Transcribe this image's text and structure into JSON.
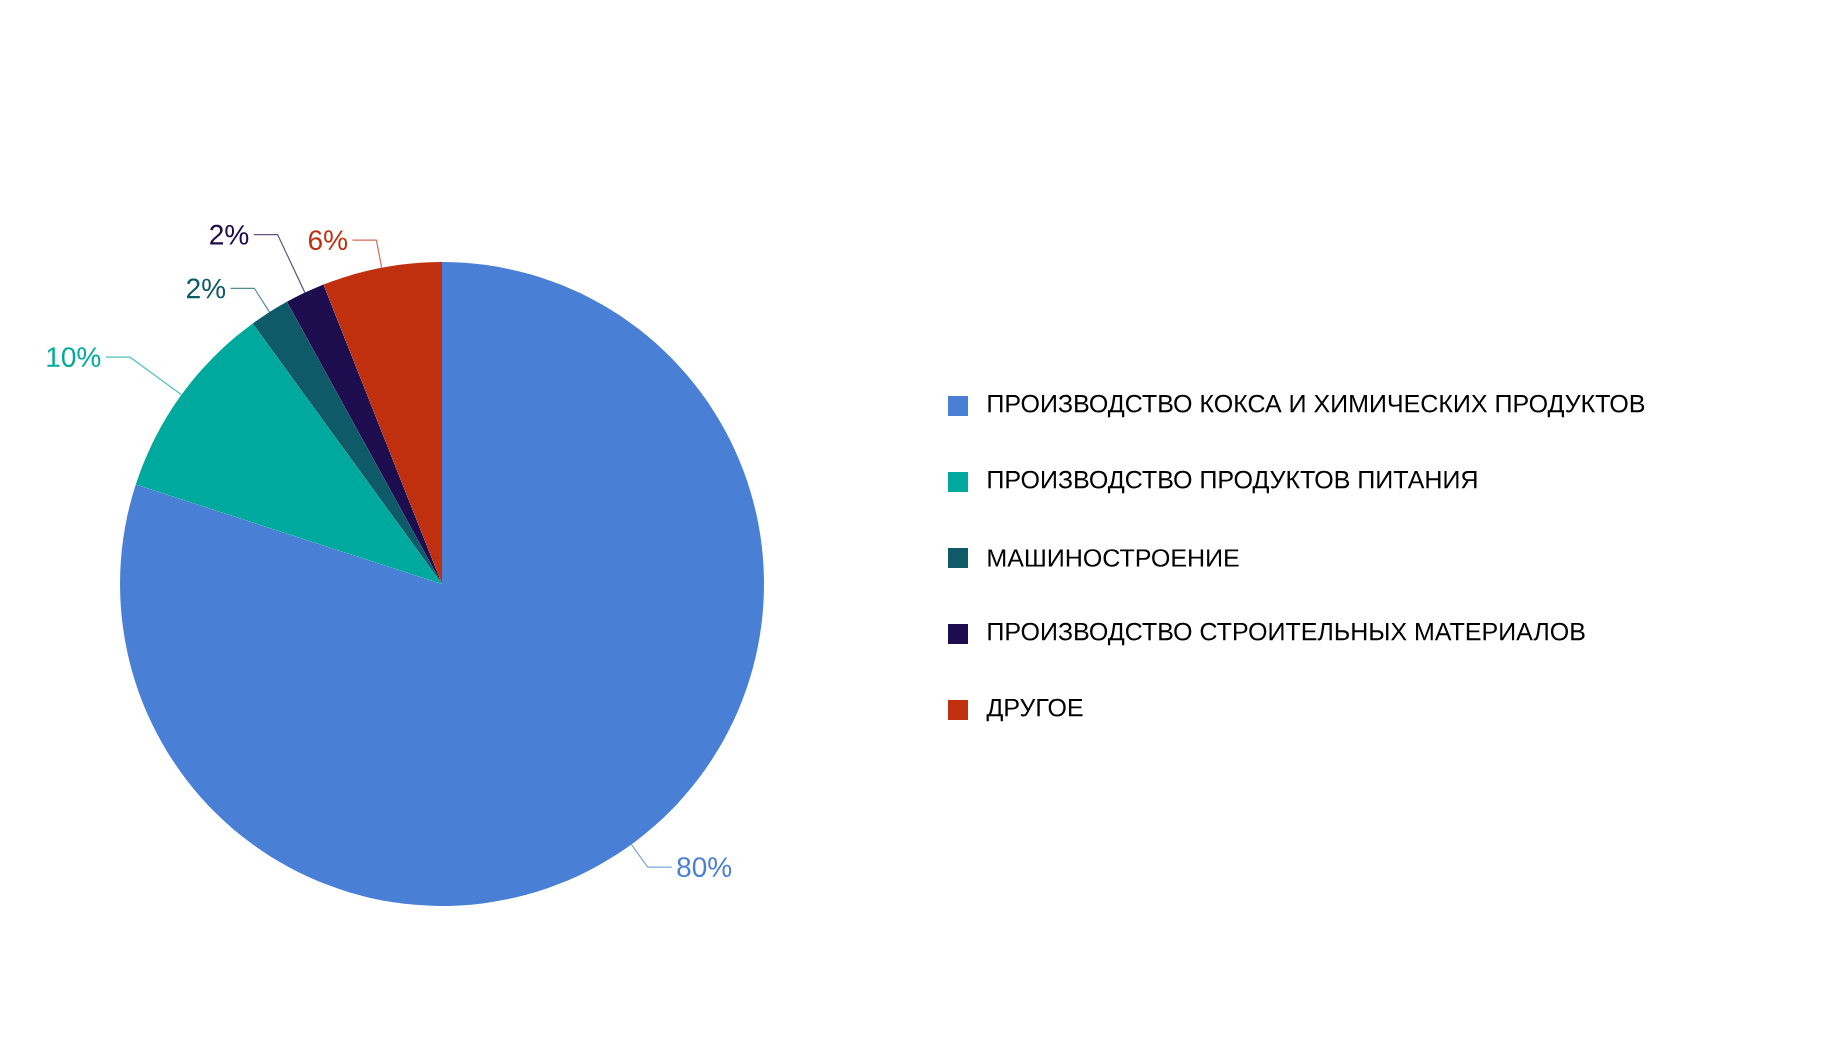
{
  "chart_data": {
    "type": "pie",
    "categories": [
      "ПРОИЗВОДСТВО КОКСА И ХИМИЧЕСКИХ ПРОДУКТОВ",
      "ПРОИЗВОДСТВО ПРОДУКТОВ ПИТАНИЯ",
      "МАШИНОСТРОЕНИЕ",
      "ПРОИЗВОДСТВО СТРОИТЕЛЬНЫХ МАТЕРИАЛОВ",
      "ДРУГОЕ"
    ],
    "values": [
      80,
      10,
      2,
      2,
      6
    ],
    "value_labels": [
      "80%",
      "10%",
      "2%",
      "2%",
      "6%"
    ],
    "colors": [
      "#4a7fd6",
      "#00a99d",
      "#0e5a69",
      "#1d0c4e",
      "#c0300e"
    ],
    "legend": "right"
  }
}
